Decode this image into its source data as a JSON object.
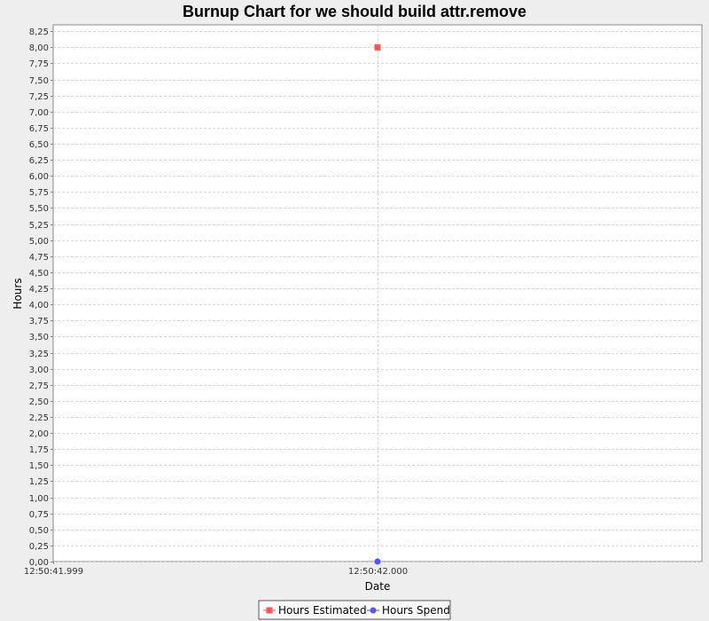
{
  "chart_data": {
    "type": "scatter",
    "title": "Burnup Chart for we should build attr.remove",
    "xlabel": "Date",
    "ylabel": "Hours",
    "x_ticks": [
      "12:50:41.999",
      "12:50:42.000"
    ],
    "y_ticks": [
      "0,00",
      "0,25",
      "0,50",
      "0,75",
      "1,00",
      "1,25",
      "1,50",
      "1,75",
      "2,00",
      "2,25",
      "2,50",
      "2,75",
      "3,00",
      "3,25",
      "3,50",
      "3,75",
      "4,00",
      "4,25",
      "4,50",
      "4,75",
      "5,00",
      "5,25",
      "5,50",
      "5,75",
      "6,00",
      "6,25",
      "6,50",
      "6,75",
      "7,00",
      "7,25",
      "7,50",
      "7,75",
      "8,00",
      "8,25"
    ],
    "ylim": [
      0,
      8.35
    ],
    "xlim": [
      "12:50:41.999",
      "12:50:42.001"
    ],
    "grid": true,
    "legend_position": "bottom",
    "series": [
      {
        "name": "Hours Estimated",
        "color": "#ff5555",
        "marker": "square",
        "points": [
          {
            "x": "12:50:42.000",
            "y": 8.0
          }
        ]
      },
      {
        "name": "Hours Spend",
        "color": "#5555ff",
        "marker": "circle",
        "points": [
          {
            "x": "12:50:42.000",
            "y": 0.0
          }
        ]
      }
    ]
  }
}
